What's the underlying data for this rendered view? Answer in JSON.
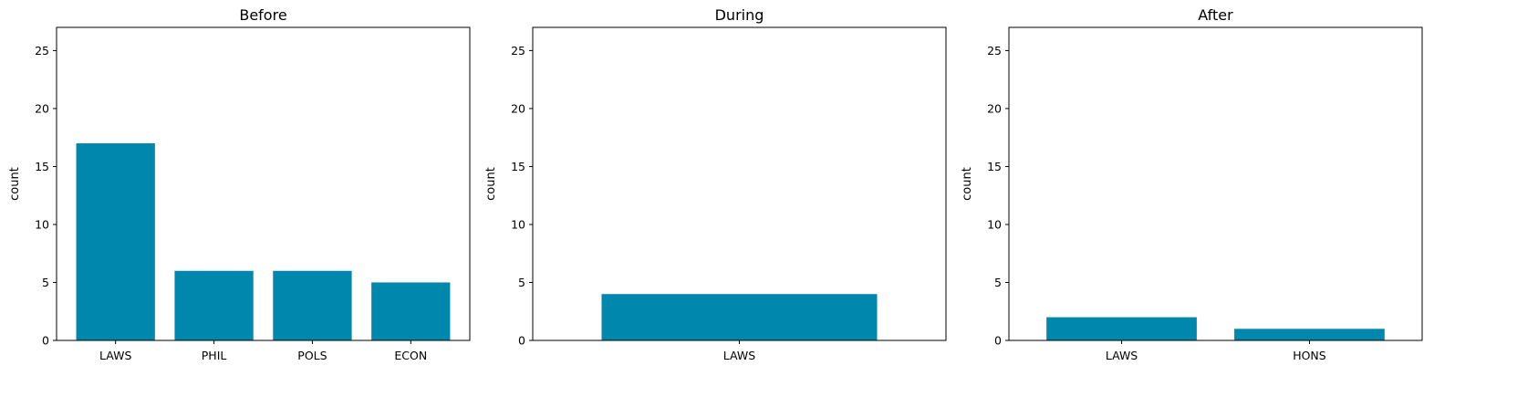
{
  "chart_data": [
    {
      "type": "bar",
      "title": "Before",
      "xlabel": "",
      "ylabel": "count",
      "ylim": [
        0,
        27
      ],
      "yticks": [
        0,
        5,
        10,
        15,
        20,
        25
      ],
      "categories": [
        "LAWS",
        "PHIL",
        "POLS",
        "ECON"
      ],
      "values": [
        17,
        6,
        6,
        5
      ],
      "color": "#0087ae",
      "grid": false
    },
    {
      "type": "bar",
      "title": "During",
      "xlabel": "",
      "ylabel": "count",
      "ylim": [
        0,
        27
      ],
      "yticks": [
        0,
        5,
        10,
        15,
        20,
        25
      ],
      "categories": [
        "LAWS"
      ],
      "values": [
        4
      ],
      "color": "#0087ae",
      "grid": false
    },
    {
      "type": "bar",
      "title": "After",
      "xlabel": "",
      "ylabel": "count",
      "ylim": [
        0,
        27
      ],
      "yticks": [
        0,
        5,
        10,
        15,
        20,
        25
      ],
      "categories": [
        "LAWS",
        "HONS"
      ],
      "values": [
        2,
        1
      ],
      "color": "#0087ae",
      "grid": false
    }
  ]
}
